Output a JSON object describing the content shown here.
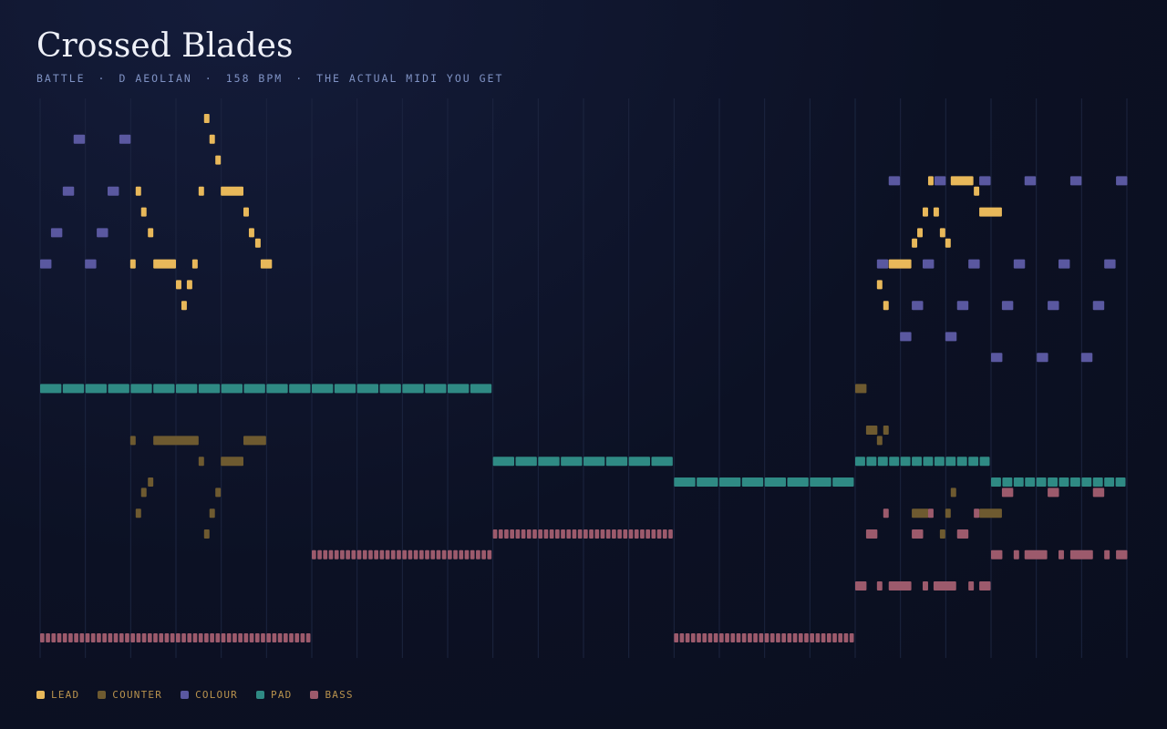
{
  "chart_data": {
    "type": "pianoroll",
    "title": "Crossed Blades",
    "subtitle": [
      "BATTLE",
      "D AEOLIAN",
      "158 BPM",
      "THE ACTUAL MIDI YOU GET"
    ],
    "xlim": [
      0,
      24
    ],
    "pitch_range": [
      36,
      86
    ],
    "xticks": [
      0,
      1,
      2,
      3,
      4,
      5,
      6,
      7,
      8,
      9,
      10,
      11,
      12,
      13,
      14,
      15,
      16,
      17,
      18,
      19,
      20,
      21,
      22,
      23,
      24
    ],
    "tracks": [
      {
        "name": "LEAD",
        "color": "#e8b85a",
        "notes": [
          [
            3.62,
            86,
            0.12
          ],
          [
            3.74,
            84,
            0.12
          ],
          [
            3.87,
            82,
            0.12
          ],
          [
            2.11,
            79,
            0.12
          ],
          [
            3.5,
            79,
            0.12
          ],
          [
            3.99,
            79,
            0.5
          ],
          [
            2.23,
            77,
            0.12
          ],
          [
            4.49,
            77,
            0.12
          ],
          [
            2.38,
            75,
            0.12
          ],
          [
            4.61,
            75,
            0.12
          ],
          [
            4.75,
            74,
            0.12
          ],
          [
            1.99,
            72,
            0.12
          ],
          [
            2.5,
            72,
            0.5
          ],
          [
            3.36,
            72,
            0.12
          ],
          [
            4.87,
            72,
            0.25
          ],
          [
            3.0,
            70,
            0.12
          ],
          [
            3.24,
            70,
            0.12
          ],
          [
            3.12,
            68,
            0.12
          ],
          [
            19.61,
            80,
            0.12
          ],
          [
            20.11,
            80,
            0.5
          ],
          [
            20.62,
            79,
            0.12
          ],
          [
            19.49,
            77,
            0.12
          ],
          [
            19.73,
            77,
            0.12
          ],
          [
            20.74,
            77,
            0.5
          ],
          [
            19.37,
            75,
            0.12
          ],
          [
            19.87,
            75,
            0.12
          ],
          [
            19.25,
            74,
            0.12
          ],
          [
            19.99,
            74,
            0.12
          ],
          [
            18.74,
            72,
            0.5
          ],
          [
            18.48,
            70,
            0.12
          ],
          [
            18.62,
            68,
            0.12
          ]
        ]
      },
      {
        "name": "COUNTER",
        "color": "#6e5a30",
        "notes": [
          [
            1.99,
            55,
            0.12
          ],
          [
            2.5,
            55,
            1
          ],
          [
            4.49,
            55,
            0.5
          ],
          [
            3.5,
            53,
            0.12
          ],
          [
            3.99,
            53,
            0.5
          ],
          [
            2.38,
            51,
            0.12
          ],
          [
            2.23,
            50,
            0.12
          ],
          [
            3.87,
            50,
            0.12
          ],
          [
            2.11,
            48,
            0.12
          ],
          [
            3.74,
            48,
            0.12
          ],
          [
            3.62,
            46,
            0.12
          ],
          [
            18,
            60,
            0.25
          ],
          [
            18.24,
            56,
            0.25
          ],
          [
            18.62,
            56,
            0.12
          ],
          [
            18.48,
            55,
            0.12
          ],
          [
            20.11,
            50,
            0.12
          ],
          [
            19.25,
            48,
            0.37
          ],
          [
            19.99,
            48,
            0.12
          ],
          [
            20.74,
            48,
            0.5
          ],
          [
            19.87,
            46,
            0.12
          ]
        ]
      },
      {
        "name": "COLOUR",
        "color": "#5a58a0",
        "notes": [
          [
            0.74,
            84,
            0.25
          ],
          [
            1.75,
            84,
            0.25
          ],
          [
            0.5,
            79,
            0.25
          ],
          [
            1.49,
            79,
            0.25
          ],
          [
            0.24,
            75,
            0.25
          ],
          [
            1.25,
            75,
            0.25
          ],
          [
            0,
            72,
            0.25
          ],
          [
            0.99,
            72,
            0.25
          ],
          [
            18.74,
            80,
            0.25
          ],
          [
            19.75,
            80,
            0.25
          ],
          [
            20.74,
            80,
            0.25
          ],
          [
            21.74,
            80,
            0.25
          ],
          [
            22.75,
            80,
            0.25
          ],
          [
            23.76,
            80,
            0.25
          ],
          [
            18.48,
            72,
            0.25
          ],
          [
            19.49,
            72,
            0.25
          ],
          [
            20.5,
            72,
            0.25
          ],
          [
            21.5,
            72,
            0.25
          ],
          [
            22.49,
            72,
            0.25
          ],
          [
            23.5,
            72,
            0.25
          ],
          [
            19.25,
            68,
            0.25
          ],
          [
            20.25,
            68,
            0.25
          ],
          [
            21.24,
            68,
            0.25
          ],
          [
            22.25,
            68,
            0.25
          ],
          [
            23.25,
            68,
            0.25
          ],
          [
            18.99,
            65,
            0.25
          ],
          [
            19.99,
            65,
            0.25
          ],
          [
            21,
            63,
            0.25
          ],
          [
            22.01,
            63,
            0.25
          ],
          [
            22.99,
            63,
            0.25
          ]
        ]
      },
      {
        "name": "PAD",
        "color": "#2f8a84",
        "notes": [
          [
            0,
            60,
            10,
            0.5
          ],
          [
            10,
            53,
            4,
            0.5
          ],
          [
            14,
            51,
            4,
            0.5
          ],
          [
            18,
            53,
            3,
            0.25
          ],
          [
            21,
            51,
            3,
            0.25
          ]
        ]
      },
      {
        "name": "BASS",
        "color": "#9c5a6c",
        "notes": [
          [
            0,
            36,
            6,
            0.125
          ],
          [
            6,
            44,
            4,
            0.125
          ],
          [
            10,
            46,
            4,
            0.125
          ],
          [
            14,
            36,
            4,
            0.125
          ],
          [
            18,
            41,
            0.25
          ],
          [
            18.48,
            41,
            0.12
          ],
          [
            18.74,
            41,
            0.5
          ],
          [
            19.49,
            41,
            0.12
          ],
          [
            19.73,
            41,
            0.5
          ],
          [
            20.5,
            41,
            0.12
          ],
          [
            20.74,
            41,
            0.25
          ],
          [
            21,
            44,
            0.25
          ],
          [
            21.5,
            44,
            0.12
          ],
          [
            21.74,
            44,
            0.5
          ],
          [
            22.49,
            44,
            0.12
          ],
          [
            22.75,
            44,
            0.5
          ],
          [
            23.5,
            44,
            0.12
          ],
          [
            23.76,
            44,
            0.25
          ],
          [
            18.24,
            46,
            0.25
          ],
          [
            19.25,
            46,
            0.25
          ],
          [
            20.25,
            46,
            0.25
          ],
          [
            21.24,
            50,
            0.25
          ],
          [
            22.25,
            50,
            0.25
          ],
          [
            23.25,
            50,
            0.25
          ],
          [
            18.62,
            48,
            0.12
          ],
          [
            19.61,
            48,
            0.12
          ],
          [
            20.62,
            48,
            0.12
          ]
        ]
      }
    ]
  }
}
